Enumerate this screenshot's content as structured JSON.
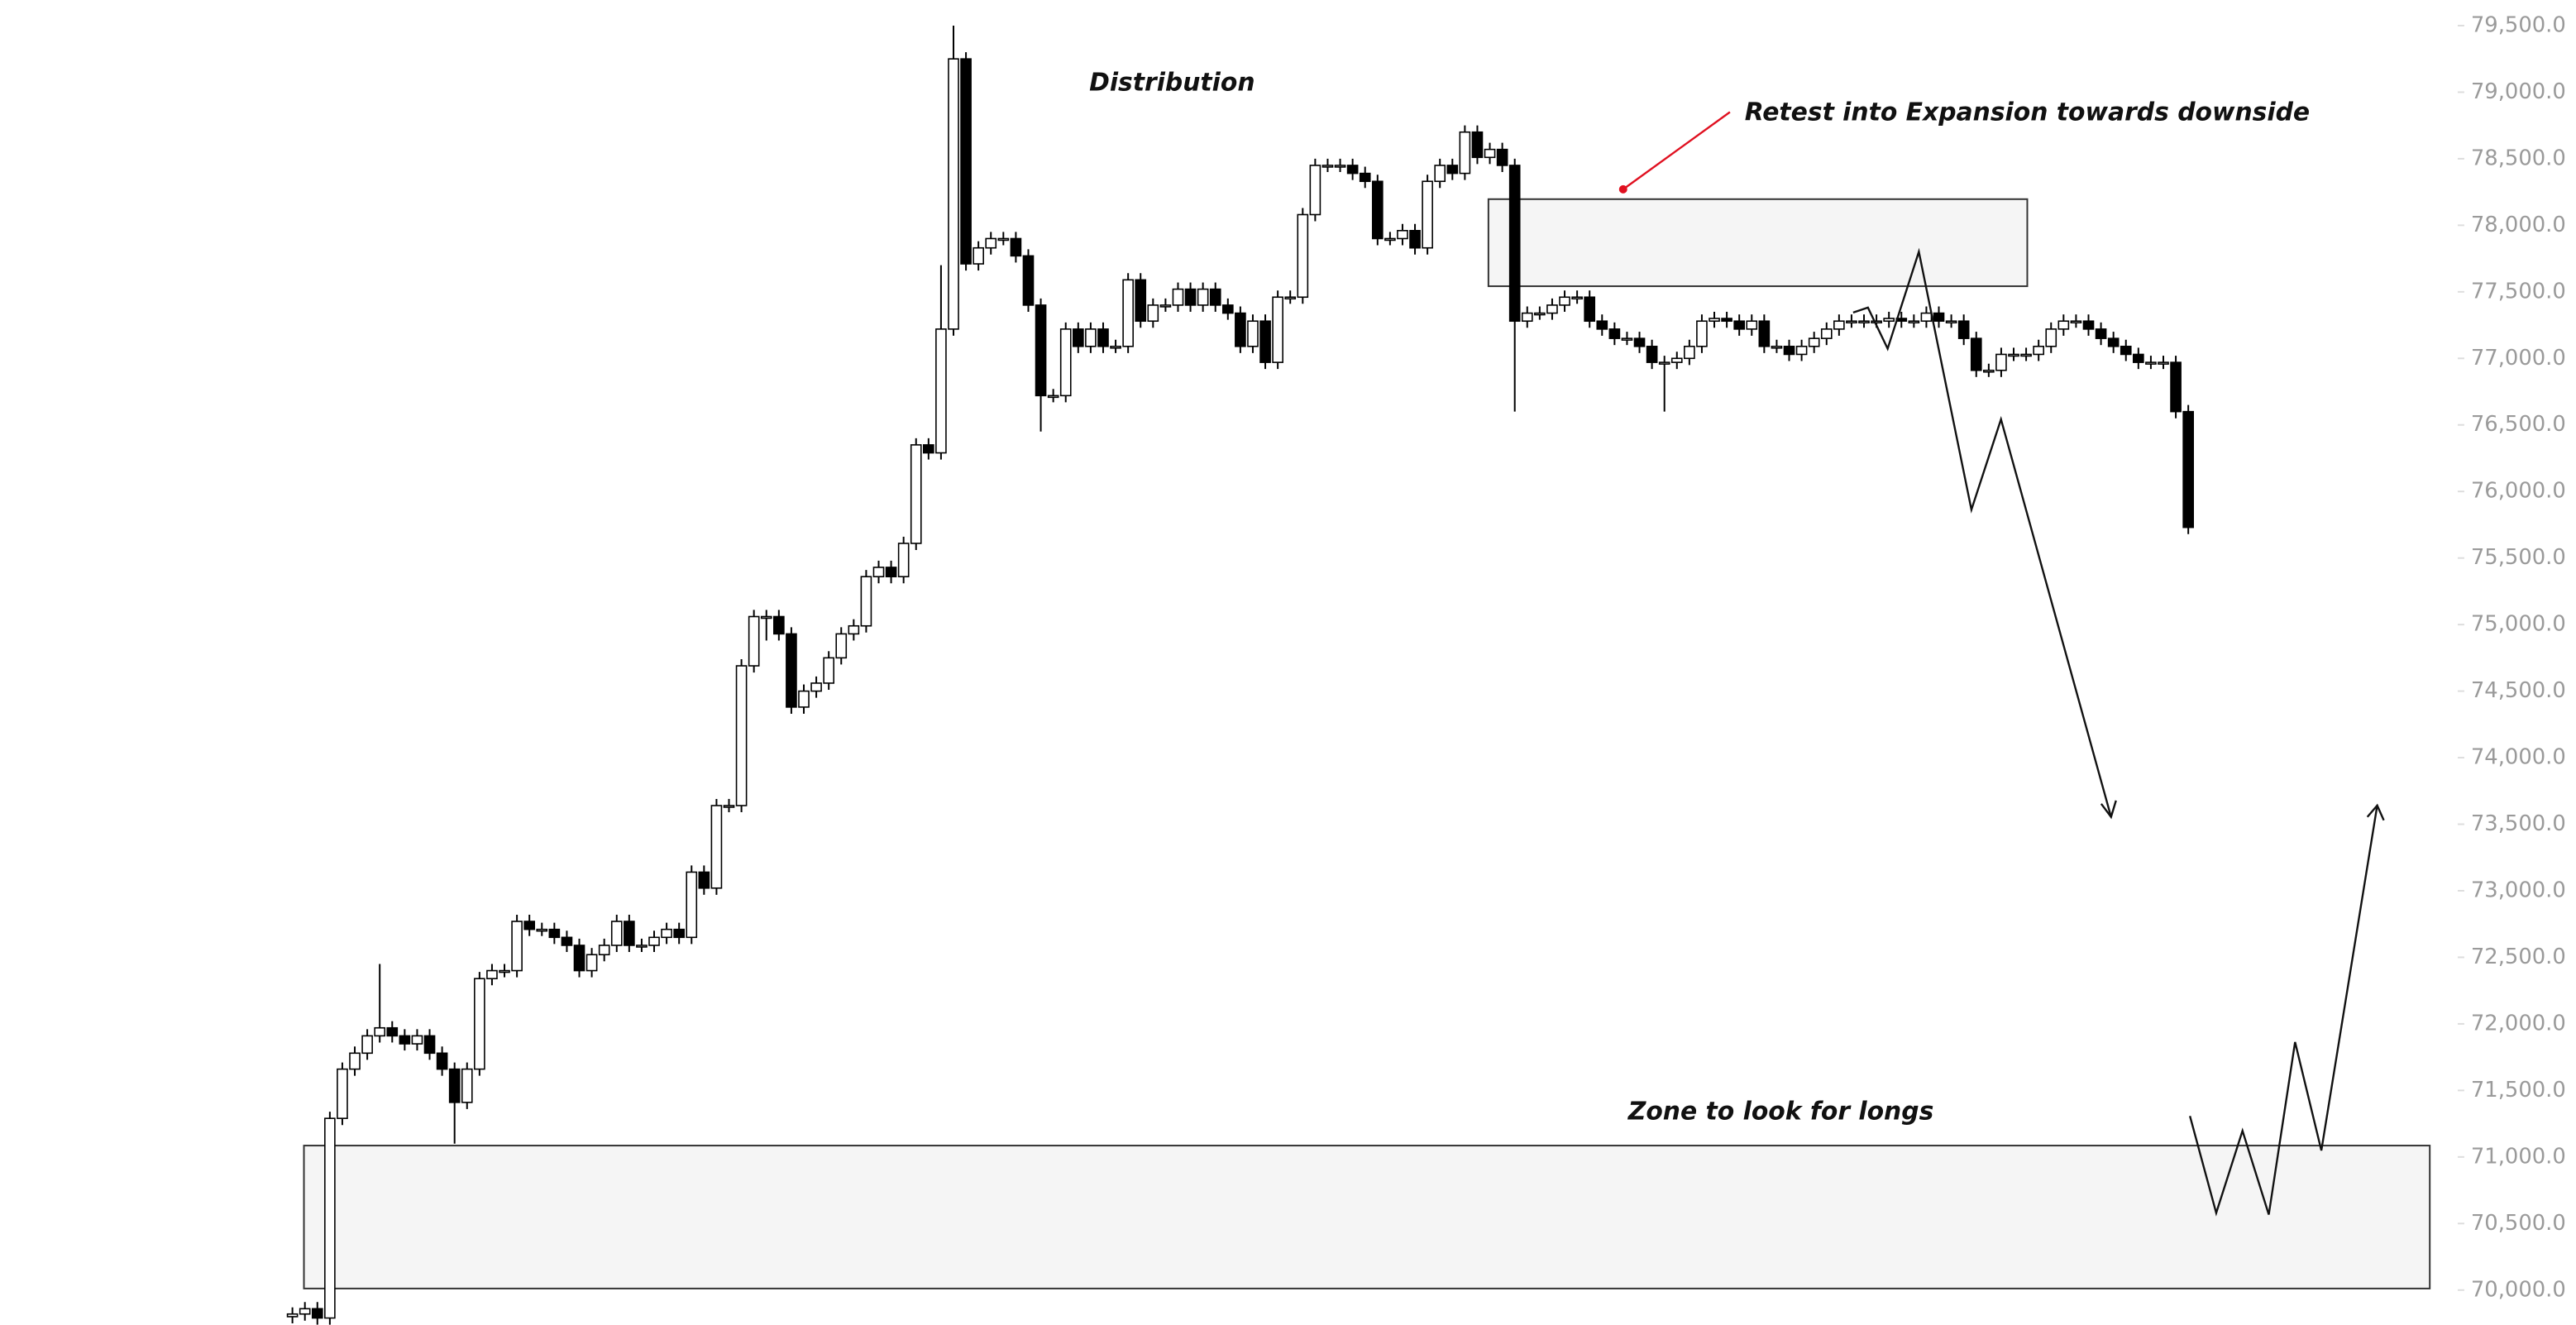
{
  "chart_data": {
    "type": "candlestick",
    "annotations": [
      "Distribution",
      "Retest into Expansion towards downside",
      "Zone to look for longs"
    ],
    "up_color": "#ffffff",
    "down_color": "#000000",
    "ylim": [
      69740,
      79690
    ],
    "yticks": [
      {
        "value": 70000,
        "label": "70,000.0"
      },
      {
        "value": 70500,
        "label": "70,500.0"
      },
      {
        "value": 71000,
        "label": "71,000.0"
      },
      {
        "value": 71500,
        "label": "71,500.0"
      },
      {
        "value": 72000,
        "label": "72,000.0"
      },
      {
        "value": 72500,
        "label": "72,500.0"
      },
      {
        "value": 73000,
        "label": "73,000.0"
      },
      {
        "value": 73500,
        "label": "73,500.0"
      },
      {
        "value": 74000,
        "label": "74,000.0"
      },
      {
        "value": 74500,
        "label": "74,500.0"
      },
      {
        "value": 75000,
        "label": "75,000.0"
      },
      {
        "value": 75500,
        "label": "75,500.0"
      },
      {
        "value": 76000,
        "label": "76,000.0"
      },
      {
        "value": 76500,
        "label": "76,500.0"
      },
      {
        "value": 77000,
        "label": "77,000.0"
      },
      {
        "value": 77500,
        "label": "77,500.0"
      },
      {
        "value": 78000,
        "label": "78,000.0"
      },
      {
        "value": 78500,
        "label": "78,500.0"
      },
      {
        "value": 79000,
        "label": "79,000.0"
      },
      {
        "value": 79500,
        "label": "79,500.0"
      }
    ],
    "open": [
      69800,
      69820,
      69860,
      69790,
      71290,
      71660,
      71780,
      71910,
      71970,
      71910,
      71850,
      71910,
      71780,
      71660,
      71410,
      71660,
      72340,
      72400,
      72400,
      72770,
      72710,
      72710,
      72650,
      72590,
      72400,
      72520,
      72590,
      72770,
      72590,
      72590,
      72650,
      72710,
      72650,
      73140,
      73020,
      73640,
      73640,
      74690,
      75060,
      75060,
      74930,
      74380,
      74500,
      74560,
      74750,
      74930,
      74990,
      75360,
      75430,
      75360,
      75610,
      76350,
      76290,
      77220,
      79250,
      77710,
      77830,
      77900,
      77900,
      77770,
      77400,
      76720,
      76720,
      77220,
      77090,
      77220,
      77090,
      77090,
      77590,
      77280,
      77400,
      77400,
      77520,
      77400,
      77520,
      77400,
      77340,
      77090,
      77280,
      76970,
      77460,
      77460,
      78080,
      78450,
      78450,
      78450,
      78390,
      78330,
      77900,
      77900,
      77960,
      77830,
      78330,
      78450,
      78390,
      78700,
      78510,
      78570,
      78450,
      77280,
      77340,
      77340,
      77400,
      77460,
      77460,
      77280,
      77220,
      77150,
      77150,
      77090,
      76970,
      76970,
      77000,
      77090,
      77280,
      77300,
      77280,
      77220,
      77280,
      77090,
      77090,
      77030,
      77090,
      77150,
      77220,
      77280,
      77280,
      77280,
      77280,
      77300,
      77280,
      77280,
      77340,
      77280,
      77280,
      77150,
      76910,
      76910,
      77030,
      77030,
      77030,
      77090,
      77220,
      77280,
      77280,
      77220,
      77150,
      77090,
      77030,
      76970,
      76970,
      76970,
      76600
    ],
    "high": [
      69870,
      69910,
      69910,
      71340,
      71710,
      71830,
      71960,
      72450,
      72020,
      71960,
      71960,
      71960,
      71830,
      71710,
      71710,
      72390,
      72450,
      72450,
      72820,
      72820,
      72760,
      72760,
      72700,
      72640,
      72570,
      72640,
      72820,
      72820,
      72640,
      72700,
      72760,
      72760,
      73190,
      73190,
      73690,
      73690,
      74740,
      75110,
      75110,
      75110,
      74980,
      74550,
      74610,
      74800,
      74980,
      75040,
      75410,
      75480,
      75480,
      75660,
      76400,
      76400,
      77700,
      79500,
      79300,
      77880,
      77950,
      77950,
      77950,
      77820,
      77450,
      76770,
      77270,
      77270,
      77270,
      77270,
      77140,
      77640,
      77640,
      77450,
      77450,
      77570,
      77570,
      77570,
      77570,
      77450,
      77390,
      77330,
      77330,
      77510,
      77510,
      78130,
      78500,
      78500,
      78500,
      78500,
      78440,
      78380,
      77950,
      78010,
      78010,
      78380,
      78500,
      78500,
      78750,
      78750,
      78620,
      78620,
      78500,
      77390,
      77390,
      77450,
      77510,
      77510,
      77510,
      77330,
      77270,
      77200,
      77200,
      77140,
      77020,
      77050,
      77140,
      77330,
      77350,
      77350,
      77330,
      77330,
      77330,
      77140,
      77140,
      77140,
      77200,
      77270,
      77330,
      77330,
      77330,
      77330,
      77350,
      77350,
      77330,
      77390,
      77390,
      77330,
      77330,
      77200,
      76960,
      77080,
      77080,
      77080,
      77140,
      77270,
      77330,
      77330,
      77330,
      77270,
      77200,
      77140,
      77080,
      77020,
      77020,
      77020,
      76650
    ],
    "low": [
      69750,
      69770,
      69740,
      69740,
      71240,
      71610,
      71730,
      71860,
      71860,
      71800,
      71800,
      71730,
      71610,
      71100,
      71360,
      71610,
      72290,
      72350,
      72350,
      72660,
      72660,
      72600,
      72540,
      72350,
      72350,
      72470,
      72540,
      72540,
      72540,
      72540,
      72600,
      72600,
      72600,
      72970,
      72970,
      73590,
      73590,
      74640,
      74880,
      74880,
      74330,
      74330,
      74450,
      74510,
      74700,
      74880,
      74940,
      75310,
      75310,
      75310,
      75560,
      76240,
      76240,
      77170,
      77660,
      77660,
      77780,
      77850,
      77720,
      77350,
      76450,
      76670,
      76670,
      77040,
      77040,
      77040,
      77040,
      77040,
      77230,
      77230,
      77350,
      77350,
      77350,
      77350,
      77350,
      77290,
      77040,
      77040,
      76920,
      76920,
      77410,
      77410,
      78030,
      78400,
      78400,
      78340,
      78280,
      77850,
      77850,
      77850,
      77780,
      77780,
      78280,
      78340,
      78340,
      78460,
      78460,
      78400,
      76600,
      77230,
      77290,
      77290,
      77350,
      77410,
      77230,
      77170,
      77100,
      77100,
      77040,
      76920,
      76600,
      76920,
      76950,
      77040,
      77230,
      77230,
      77170,
      77170,
      77040,
      77040,
      76980,
      76980,
      77040,
      77100,
      77170,
      77230,
      77230,
      77230,
      77230,
      77230,
      77230,
      77230,
      77230,
      77230,
      77100,
      76860,
      76860,
      76860,
      76980,
      76980,
      76980,
      77040,
      77170,
      77230,
      77170,
      77100,
      77040,
      76980,
      76920,
      76920,
      76920,
      76550,
      75680
    ],
    "close": [
      69820,
      69860,
      69790,
      71290,
      71660,
      71780,
      71910,
      71970,
      71910,
      71850,
      71910,
      71780,
      71660,
      71410,
      71660,
      72340,
      72400,
      72400,
      72770,
      72710,
      72710,
      72650,
      72590,
      72400,
      72520,
      72590,
      72770,
      72590,
      72590,
      72650,
      72710,
      72650,
      73140,
      73020,
      73640,
      73640,
      74690,
      75060,
      75060,
      74930,
      74380,
      74500,
      74560,
      74750,
      74930,
      74990,
      75360,
      75430,
      75360,
      75610,
      76350,
      76290,
      77220,
      79250,
      77710,
      77830,
      77900,
      77900,
      77770,
      77400,
      76720,
      76720,
      77220,
      77090,
      77220,
      77090,
      77090,
      77590,
      77280,
      77400,
      77400,
      77520,
      77400,
      77520,
      77400,
      77340,
      77090,
      77280,
      76970,
      77460,
      77460,
      78080,
      78450,
      78450,
      78450,
      78390,
      78330,
      77900,
      77900,
      77960,
      77830,
      78330,
      78450,
      78390,
      78700,
      78510,
      78570,
      78450,
      77280,
      77340,
      77340,
      77400,
      77460,
      77460,
      77280,
      77220,
      77150,
      77150,
      77090,
      76970,
      76970,
      77000,
      77090,
      77280,
      77300,
      77280,
      77220,
      77280,
      77090,
      77090,
      77030,
      77090,
      77150,
      77220,
      77280,
      77280,
      77280,
      77280,
      77300,
      77280,
      77280,
      77340,
      77280,
      77280,
      77150,
      76910,
      76910,
      77030,
      77030,
      77030,
      77090,
      77220,
      77280,
      77280,
      77220,
      77150,
      77090,
      77030,
      76970,
      76970,
      76970,
      76600,
      75730
    ]
  }
}
